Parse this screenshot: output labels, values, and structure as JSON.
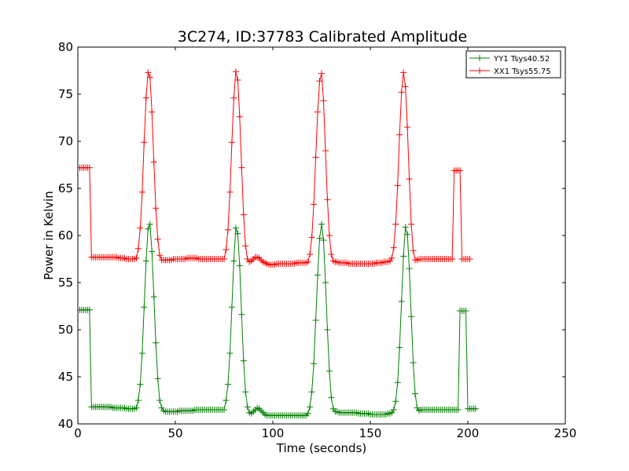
{
  "chart_data": {
    "type": "line",
    "title": "3C274, ID:37783 Calibrated Amplitude",
    "xlabel": "Time (seconds)",
    "ylabel": "Power in Kelvin",
    "xlim": [
      0,
      250
    ],
    "ylim": [
      40,
      80
    ],
    "xticks": [
      0,
      50,
      100,
      150,
      200,
      250
    ],
    "yticks": [
      40,
      45,
      50,
      55,
      60,
      65,
      70,
      75,
      80
    ],
    "grid": false,
    "legend_position": "top-right",
    "marker": "+",
    "sample_interval": 1,
    "series": [
      {
        "name": "YY1 Tsys40.52",
        "color": "#008000",
        "values": [
          52.1,
          52.1,
          52.1,
          52.1,
          52.1,
          52.1,
          41.8,
          41.8,
          41.8,
          41.8,
          41.8,
          41.8,
          41.8,
          41.8,
          41.8,
          41.8,
          41.8,
          41.7,
          41.7,
          41.7,
          41.7,
          41.7,
          41.7,
          41.7,
          41.6,
          41.6,
          41.6,
          41.6,
          41.6,
          41.7,
          42.5,
          44.2,
          47.5,
          52.4,
          57.3,
          60.7,
          61.2,
          58.3,
          53.5,
          48.6,
          44.8,
          42.5,
          41.7,
          41.4,
          41.3,
          41.3,
          41.3,
          41.3,
          41.3,
          41.3,
          41.3,
          41.4,
          41.4,
          41.4,
          41.4,
          41.4,
          41.4,
          41.4,
          41.4,
          41.5,
          41.5,
          41.5,
          41.5,
          41.5,
          41.5,
          41.5,
          41.5,
          41.5,
          41.5,
          41.5,
          41.5,
          41.5,
          41.5,
          41.5,
          41.5,
          42.5,
          44.2,
          47.5,
          52.4,
          57.3,
          60.8,
          60.2,
          56.8,
          51.6,
          46.7,
          43.4,
          41.8,
          41.2,
          41.1,
          41.3,
          41.5,
          41.7,
          41.6,
          41.4,
          41.2,
          41.0,
          40.9,
          40.9,
          40.9,
          40.9,
          40.9,
          40.9,
          40.9,
          40.9,
          40.9,
          40.9,
          40.9,
          40.9,
          40.9,
          40.9,
          40.9,
          40.9,
          40.9,
          40.9,
          40.9,
          40.9,
          40.9,
          41.1,
          41.8,
          43.4,
          46.4,
          51.0,
          55.8,
          59.7,
          61.2,
          59.5,
          55.0,
          50.0,
          45.6,
          42.8,
          41.6,
          41.3,
          41.3,
          41.2,
          41.2,
          41.2,
          41.2,
          41.2,
          41.2,
          41.2,
          41.2,
          41.2,
          41.2,
          41.1,
          41.1,
          41.1,
          41.1,
          41.1,
          41.1,
          41.0,
          41.0,
          41.0,
          41.0,
          41.0,
          41.0,
          41.0,
          41.0,
          41.0,
          41.1,
          41.1,
          41.2,
          41.5,
          42.4,
          44.4,
          48.1,
          53.0,
          57.8,
          60.9,
          60.1,
          56.5,
          51.4,
          46.5,
          43.2,
          41.7,
          41.4,
          41.5,
          41.5,
          41.5,
          41.5,
          41.5,
          41.5,
          41.5,
          41.5,
          41.5,
          41.5,
          41.5,
          41.5,
          41.5,
          41.5,
          41.5,
          41.5,
          41.5,
          41.5,
          41.5,
          41.5,
          52.0,
          52.0,
          52.0,
          52.0,
          41.6,
          41.6,
          41.6,
          41.6,
          41.6
        ]
      },
      {
        "name": "XX1 Tsys55.75",
        "color": "#ff0000",
        "values": [
          67.2,
          67.2,
          67.2,
          67.2,
          67.2,
          67.2,
          57.7,
          57.7,
          57.7,
          57.7,
          57.7,
          57.7,
          57.7,
          57.7,
          57.7,
          57.7,
          57.7,
          57.7,
          57.7,
          57.7,
          57.6,
          57.6,
          57.6,
          57.6,
          57.5,
          57.5,
          57.5,
          57.5,
          57.5,
          57.6,
          58.6,
          60.8,
          64.6,
          69.9,
          74.6,
          77.3,
          76.8,
          73.1,
          67.8,
          62.9,
          59.6,
          57.9,
          57.4,
          57.4,
          57.4,
          57.4,
          57.4,
          57.4,
          57.5,
          57.5,
          57.5,
          57.5,
          57.5,
          57.5,
          57.5,
          57.6,
          57.6,
          57.6,
          57.6,
          57.6,
          57.6,
          57.5,
          57.5,
          57.5,
          57.5,
          57.5,
          57.5,
          57.5,
          57.5,
          57.5,
          57.5,
          57.5,
          57.5,
          57.5,
          57.5,
          58.5,
          60.6,
          64.6,
          69.9,
          74.6,
          77.4,
          76.5,
          72.6,
          67.2,
          62.2,
          58.9,
          57.5,
          57.2,
          57.3,
          57.5,
          57.7,
          57.7,
          57.6,
          57.4,
          57.2,
          57.1,
          57.0,
          56.9,
          56.9,
          56.9,
          56.9,
          57.0,
          57.0,
          57.0,
          57.0,
          57.0,
          57.0,
          57.0,
          57.0,
          57.0,
          57.0,
          57.1,
          57.1,
          57.1,
          57.1,
          57.1,
          57.1,
          57.2,
          58.0,
          59.8,
          63.3,
          68.3,
          73.1,
          76.4,
          77.2,
          74.3,
          69.0,
          63.8,
          60.0,
          58.0,
          57.3,
          57.2,
          57.2,
          57.1,
          57.1,
          57.1,
          57.1,
          57.1,
          57.0,
          57.0,
          57.0,
          57.0,
          57.0,
          57.0,
          57.0,
          57.0,
          57.0,
          57.0,
          57.0,
          57.0,
          57.0,
          57.0,
          57.1,
          57.1,
          57.1,
          57.1,
          57.2,
          57.2,
          57.2,
          57.3,
          57.6,
          58.7,
          61.2,
          65.3,
          70.7,
          75.2,
          77.3,
          75.8,
          71.5,
          66.0,
          61.2,
          58.4,
          57.4,
          57.4,
          57.5,
          57.5,
          57.5,
          57.5,
          57.5,
          57.5,
          57.5,
          57.5,
          57.5,
          57.5,
          57.5,
          57.5,
          57.5,
          57.5,
          57.5,
          57.5,
          57.5,
          57.5,
          66.9,
          66.9,
          66.9,
          66.9,
          57.5,
          57.5,
          57.5,
          57.5,
          57.5
        ]
      }
    ]
  }
}
